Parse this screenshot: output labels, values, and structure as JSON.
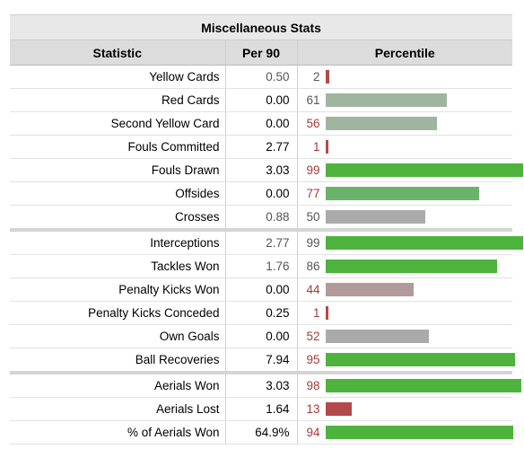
{
  "table": {
    "caption": "Miscellaneous Stats",
    "headers": {
      "statistic": "Statistic",
      "per90": "Per 90",
      "percentile": "Percentile"
    },
    "rows": [
      {
        "statistic": "Yellow Cards",
        "per90": "0.50",
        "percentile": "2",
        "percentile_value": 2,
        "bar_color": "#b34a4a",
        "num_color": "#555555",
        "muted": true,
        "group_break": false
      },
      {
        "statistic": "Red Cards",
        "per90": "0.00",
        "percentile": "61",
        "percentile_value": 61,
        "bar_color": "#9fb59f",
        "num_color": "#555555",
        "muted": false,
        "group_break": false
      },
      {
        "statistic": "Second Yellow Card",
        "per90": "0.00",
        "percentile": "56",
        "percentile_value": 56,
        "bar_color": "#9fb59f",
        "num_color": "#a33a3a",
        "muted": false,
        "group_break": false
      },
      {
        "statistic": "Fouls Committed",
        "per90": "2.77",
        "percentile": "1",
        "percentile_value": 1,
        "bar_color": "#b34a4a",
        "num_color": "#a33a3a",
        "muted": false,
        "group_break": false
      },
      {
        "statistic": "Fouls Drawn",
        "per90": "3.03",
        "percentile": "99",
        "percentile_value": 99,
        "bar_color": "#4db33d",
        "num_color": "#a33a3a",
        "muted": false,
        "group_break": false
      },
      {
        "statistic": "Offsides",
        "per90": "0.00",
        "percentile": "77",
        "percentile_value": 77,
        "bar_color": "#6ab36a",
        "num_color": "#a33a3a",
        "muted": false,
        "group_break": false
      },
      {
        "statistic": "Crosses",
        "per90": "0.88",
        "percentile": "50",
        "percentile_value": 50,
        "bar_color": "#aaaaaa",
        "num_color": "#555555",
        "muted": true,
        "group_break": false
      },
      {
        "statistic": "Interceptions",
        "per90": "2.77",
        "percentile": "99",
        "percentile_value": 99,
        "bar_color": "#4db33d",
        "num_color": "#555555",
        "muted": true,
        "group_break": true
      },
      {
        "statistic": "Tackles Won",
        "per90": "1.76",
        "percentile": "86",
        "percentile_value": 86,
        "bar_color": "#4db33d",
        "num_color": "#555555",
        "muted": true,
        "group_break": false
      },
      {
        "statistic": "Penalty Kicks Won",
        "per90": "0.00",
        "percentile": "44",
        "percentile_value": 44,
        "bar_color": "#b39a9a",
        "num_color": "#a33a3a",
        "muted": false,
        "group_break": false
      },
      {
        "statistic": "Penalty Kicks Conceded",
        "per90": "0.25",
        "percentile": "1",
        "percentile_value": 1,
        "bar_color": "#b34a4a",
        "num_color": "#a33a3a",
        "muted": false,
        "group_break": false
      },
      {
        "statistic": "Own Goals",
        "per90": "0.00",
        "percentile": "52",
        "percentile_value": 52,
        "bar_color": "#aaaaaa",
        "num_color": "#a33a3a",
        "muted": false,
        "group_break": false
      },
      {
        "statistic": "Ball Recoveries",
        "per90": "7.94",
        "percentile": "95",
        "percentile_value": 95,
        "bar_color": "#4db33d",
        "num_color": "#a33a3a",
        "muted": false,
        "group_break": false
      },
      {
        "statistic": "Aerials Won",
        "per90": "3.03",
        "percentile": "98",
        "percentile_value": 98,
        "bar_color": "#4db33d",
        "num_color": "#a33a3a",
        "muted": false,
        "group_break": true
      },
      {
        "statistic": "Aerials Lost",
        "per90": "1.64",
        "percentile": "13",
        "percentile_value": 13,
        "bar_color": "#b34a4a",
        "num_color": "#a33a3a",
        "muted": false,
        "group_break": false
      },
      {
        "statistic": "% of Aerials Won",
        "per90": "64.9%",
        "percentile": "94",
        "percentile_value": 94,
        "bar_color": "#4db33d",
        "num_color": "#a33a3a",
        "muted": false,
        "group_break": false
      }
    ]
  }
}
